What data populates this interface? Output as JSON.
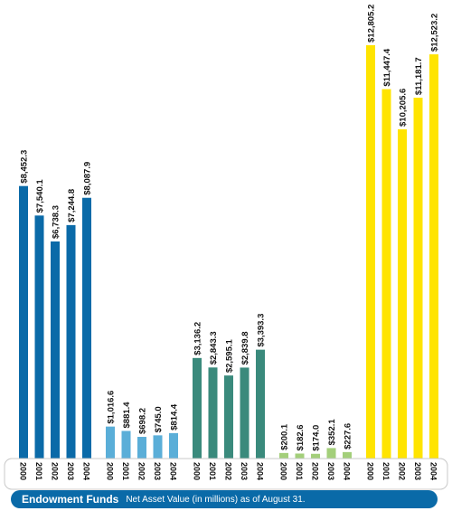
{
  "chart_data": {
    "type": "bar",
    "title": "Endowment Funds",
    "subtitle": "Net Asset Value (in millions) as of August 31.",
    "categories": [
      "2000",
      "2001",
      "2002",
      "2003",
      "2004"
    ],
    "value_prefix": "$",
    "series": [
      {
        "color": "#0a6aa8",
        "values": [
          8452.3,
          7540.1,
          6738.3,
          7244.8,
          8087.9
        ],
        "labels": [
          "$8,452.3",
          "$7,540.1",
          "$6,738.3",
          "$7,244.8",
          "$8,087.9"
        ]
      },
      {
        "color": "#5aaed8",
        "values": [
          1016.6,
          881.4,
          698.2,
          745.0,
          814.4
        ],
        "labels": [
          "$1,016.6",
          "$881.4",
          "$698.2",
          "$745.0",
          "$814.4"
        ]
      },
      {
        "color": "#3a8a7c",
        "values": [
          3136.2,
          2843.3,
          2595.1,
          2839.8,
          3393.3
        ],
        "labels": [
          "$3,136.2",
          "$2,843.3",
          "$2,595.1",
          "$2,839.8",
          "$3,393.3"
        ]
      },
      {
        "color": "#a3cf7a",
        "values": [
          200.1,
          182.6,
          174.0,
          352.1,
          227.6
        ],
        "labels": [
          "$200.1",
          "$182.6",
          "$174.0",
          "$352.1",
          "$227.6"
        ]
      },
      {
        "color": "#ffe400",
        "values": [
          12805.2,
          11447.4,
          10205.6,
          11181.7,
          12523.2
        ],
        "labels": [
          "$12,805.2",
          "$11,447.4",
          "$10,205.6",
          "$11,181.7",
          "$12,523.2"
        ]
      }
    ],
    "grid": false,
    "legend": "none"
  }
}
